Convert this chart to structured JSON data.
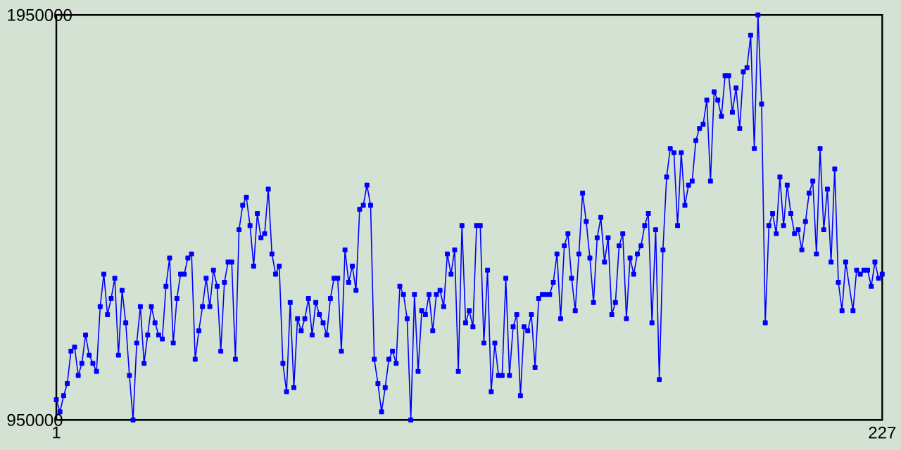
{
  "chart_data": {
    "type": "line",
    "marker": "square",
    "xlim": [
      1,
      227
    ],
    "xticks": [
      1,
      227
    ],
    "ylim": [
      950000,
      1950000
    ],
    "yticks": [
      950000,
      1950000
    ],
    "series": [
      {
        "color": "#0000ff",
        "x": [
          1,
          2,
          3,
          4,
          5,
          6,
          7,
          8,
          9,
          10,
          11,
          12,
          13,
          14,
          15,
          16,
          17,
          18,
          19,
          20,
          21,
          22,
          23,
          24,
          25,
          26,
          27,
          28,
          29,
          30,
          31,
          32,
          33,
          34,
          35,
          36,
          37,
          38,
          39,
          40,
          41,
          42,
          43,
          44,
          45,
          46,
          47,
          48,
          49,
          50,
          51,
          52,
          53,
          54,
          55,
          56,
          57,
          58,
          59,
          60,
          61,
          62,
          63,
          64,
          65,
          66,
          67,
          68,
          69,
          70,
          71,
          72,
          73,
          74,
          75,
          76,
          77,
          78,
          79,
          80,
          81,
          82,
          83,
          84,
          85,
          86,
          87,
          88,
          89,
          90,
          91,
          92,
          93,
          94,
          95,
          96,
          97,
          98,
          99,
          100,
          101,
          102,
          103,
          104,
          105,
          106,
          107,
          108,
          109,
          110,
          111,
          112,
          113,
          114,
          115,
          116,
          117,
          118,
          119,
          120,
          121,
          122,
          123,
          124,
          125,
          126,
          127,
          128,
          129,
          130,
          131,
          132,
          133,
          134,
          135,
          136,
          137,
          138,
          139,
          140,
          141,
          142,
          143,
          144,
          145,
          146,
          147,
          148,
          149,
          150,
          151,
          152,
          153,
          154,
          155,
          156,
          157,
          158,
          159,
          160,
          161,
          162,
          163,
          164,
          165,
          166,
          167,
          168,
          169,
          170,
          171,
          172,
          173,
          174,
          175,
          176,
          177,
          178,
          179,
          180,
          181,
          182,
          183,
          184,
          185,
          186,
          187,
          188,
          189,
          190,
          191,
          192,
          193,
          194,
          195,
          196,
          197,
          198,
          199,
          200,
          201,
          202,
          203,
          204,
          205,
          206,
          207,
          208,
          209,
          210,
          211,
          212,
          213,
          214,
          215,
          216,
          217,
          219,
          220,
          221,
          222,
          223,
          224,
          225,
          226,
          227
        ],
        "values": [
          1000000,
          970000,
          1010000,
          1040000,
          1120000,
          1130000,
          1060000,
          1090000,
          1160000,
          1110000,
          1090000,
          1070000,
          1230000,
          1310000,
          1210000,
          1250000,
          1300000,
          1110000,
          1270000,
          1190000,
          1060000,
          950000,
          1140000,
          1230000,
          1090000,
          1160000,
          1230000,
          1190000,
          1160000,
          1150000,
          1280000,
          1350000,
          1140000,
          1250000,
          1310000,
          1310000,
          1350000,
          1360000,
          1100000,
          1170000,
          1230000,
          1300000,
          1230000,
          1320000,
          1280000,
          1120000,
          1290000,
          1340000,
          1340000,
          1100000,
          1420000,
          1480000,
          1500000,
          1430000,
          1330000,
          1460000,
          1400000,
          1410000,
          1520000,
          1360000,
          1310000,
          1330000,
          1090000,
          1020000,
          1240000,
          1030000,
          1200000,
          1170000,
          1200000,
          1250000,
          1160000,
          1240000,
          1210000,
          1190000,
          1160000,
          1250000,
          1300000,
          1300000,
          1120000,
          1370000,
          1290000,
          1330000,
          1270000,
          1470000,
          1480000,
          1530000,
          1480000,
          1100000,
          1040000,
          970000,
          1030000,
          1100000,
          1120000,
          1090000,
          1280000,
          1260000,
          1200000,
          950000,
          1260000,
          1070000,
          1220000,
          1210000,
          1260000,
          1170000,
          1260000,
          1270000,
          1230000,
          1360000,
          1310000,
          1370000,
          1070000,
          1430000,
          1190000,
          1220000,
          1180000,
          1430000,
          1430000,
          1140000,
          1320000,
          1020000,
          1140000,
          1060000,
          1060000,
          1300000,
          1060000,
          1180000,
          1210000,
          1010000,
          1180000,
          1170000,
          1210000,
          1080000,
          1250000,
          1260000,
          1260000,
          1260000,
          1290000,
          1360000,
          1200000,
          1380000,
          1410000,
          1300000,
          1220000,
          1360000,
          1510000,
          1440000,
          1350000,
          1240000,
          1400000,
          1450000,
          1340000,
          1400000,
          1210000,
          1240000,
          1380000,
          1410000,
          1200000,
          1350000,
          1310000,
          1360000,
          1380000,
          1430000,
          1460000,
          1190000,
          1420000,
          1050000,
          1370000,
          1550000,
          1620000,
          1610000,
          1430000,
          1610000,
          1480000,
          1530000,
          1540000,
          1640000,
          1670000,
          1680000,
          1740000,
          1540000,
          1760000,
          1740000,
          1700000,
          1800000,
          1800000,
          1710000,
          1770000,
          1670000,
          1810000,
          1820000,
          1900000,
          1620000,
          1950000,
          1730000,
          1190000,
          1430000,
          1460000,
          1410000,
          1550000,
          1430000,
          1530000,
          1460000,
          1410000,
          1420000,
          1370000,
          1440000,
          1510000,
          1540000,
          1360000,
          1620000,
          1420000,
          1520000,
          1340000,
          1570000,
          1290000,
          1220000,
          1340000,
          1220000,
          1320000,
          1310000,
          1320000,
          1320000,
          1280000,
          1340000,
          1300000,
          1310000
        ]
      }
    ]
  }
}
